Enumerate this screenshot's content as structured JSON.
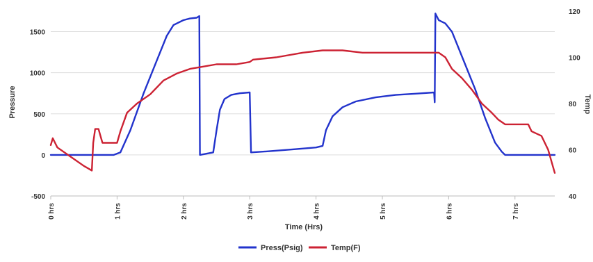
{
  "chart_data": {
    "type": "line",
    "xlabel": "Time (Hrs)",
    "ylabel_left": "Pressure",
    "ylabel_right": "Temp",
    "xlim": [
      0,
      7.6
    ],
    "ylim_left": [
      -500,
      1750
    ],
    "ylim_right": [
      40,
      120
    ],
    "x_ticks": [
      0,
      1,
      2,
      3,
      4,
      5,
      6,
      7
    ],
    "x_tick_labels": [
      "0 hrs",
      "1 hrs",
      "2 hrs",
      "3 hrs",
      "4 hrs",
      "5 hrs",
      "6 hrs",
      "7 hrs"
    ],
    "y_left_ticks": [
      -500,
      0,
      500,
      1000,
      1500
    ],
    "y_left_tick_labels": [
      "-500",
      "0",
      "500",
      "1000",
      "1500"
    ],
    "y_right_ticks": [
      40,
      60,
      80,
      100,
      120
    ],
    "y_right_tick_labels": [
      "40",
      "60",
      "80",
      "100",
      "120"
    ],
    "grid": true,
    "legend_position": "bottom",
    "series": [
      {
        "name": "Press(Psig)",
        "axis": "left",
        "color": "#2233cc",
        "points": [
          [
            0.0,
            0
          ],
          [
            0.95,
            0
          ],
          [
            1.05,
            30
          ],
          [
            1.2,
            300
          ],
          [
            1.4,
            750
          ],
          [
            1.6,
            1150
          ],
          [
            1.75,
            1450
          ],
          [
            1.85,
            1580
          ],
          [
            1.9,
            1600
          ],
          [
            2.0,
            1640
          ],
          [
            2.1,
            1660
          ],
          [
            2.2,
            1670
          ],
          [
            2.24,
            1690
          ],
          [
            2.25,
            0
          ],
          [
            2.45,
            30
          ],
          [
            2.5,
            300
          ],
          [
            2.55,
            550
          ],
          [
            2.62,
            680
          ],
          [
            2.72,
            730
          ],
          [
            2.85,
            750
          ],
          [
            3.0,
            760
          ],
          [
            3.02,
            30
          ],
          [
            3.3,
            45
          ],
          [
            3.7,
            70
          ],
          [
            4.0,
            90
          ],
          [
            4.1,
            110
          ],
          [
            4.15,
            300
          ],
          [
            4.25,
            470
          ],
          [
            4.4,
            580
          ],
          [
            4.6,
            650
          ],
          [
            4.9,
            700
          ],
          [
            5.2,
            730
          ],
          [
            5.5,
            745
          ],
          [
            5.78,
            760
          ],
          [
            5.79,
            640
          ],
          [
            5.8,
            1720
          ],
          [
            5.85,
            1640
          ],
          [
            5.95,
            1600
          ],
          [
            6.05,
            1500
          ],
          [
            6.2,
            1200
          ],
          [
            6.4,
            800
          ],
          [
            6.55,
            450
          ],
          [
            6.7,
            150
          ],
          [
            6.8,
            40
          ],
          [
            6.85,
            0
          ],
          [
            7.6,
            0
          ]
        ]
      },
      {
        "name": "Temp(F)",
        "axis": "right",
        "color": "#cc2233",
        "points": [
          [
            0.0,
            62
          ],
          [
            0.03,
            65
          ],
          [
            0.1,
            61
          ],
          [
            0.3,
            57
          ],
          [
            0.5,
            53
          ],
          [
            0.62,
            51
          ],
          [
            0.64,
            63
          ],
          [
            0.67,
            69
          ],
          [
            0.72,
            69
          ],
          [
            0.75,
            66
          ],
          [
            0.78,
            63
          ],
          [
            1.0,
            63
          ],
          [
            1.05,
            68
          ],
          [
            1.15,
            76
          ],
          [
            1.3,
            80
          ],
          [
            1.5,
            84
          ],
          [
            1.7,
            90
          ],
          [
            1.9,
            93
          ],
          [
            2.1,
            95
          ],
          [
            2.3,
            96
          ],
          [
            2.5,
            97
          ],
          [
            2.8,
            97
          ],
          [
            3.0,
            98
          ],
          [
            3.05,
            99
          ],
          [
            3.4,
            100
          ],
          [
            3.8,
            102
          ],
          [
            4.1,
            103
          ],
          [
            4.4,
            103
          ],
          [
            4.7,
            102
          ],
          [
            5.0,
            102
          ],
          [
            5.3,
            102
          ],
          [
            5.78,
            102
          ],
          [
            5.85,
            102
          ],
          [
            5.95,
            100
          ],
          [
            6.05,
            95
          ],
          [
            6.2,
            91
          ],
          [
            6.35,
            86
          ],
          [
            6.5,
            80
          ],
          [
            6.65,
            76
          ],
          [
            6.75,
            73
          ],
          [
            6.85,
            71
          ],
          [
            7.0,
            71
          ],
          [
            7.2,
            71
          ],
          [
            7.25,
            68
          ],
          [
            7.4,
            66
          ],
          [
            7.5,
            60
          ],
          [
            7.55,
            55
          ],
          [
            7.6,
            50
          ]
        ]
      }
    ]
  }
}
